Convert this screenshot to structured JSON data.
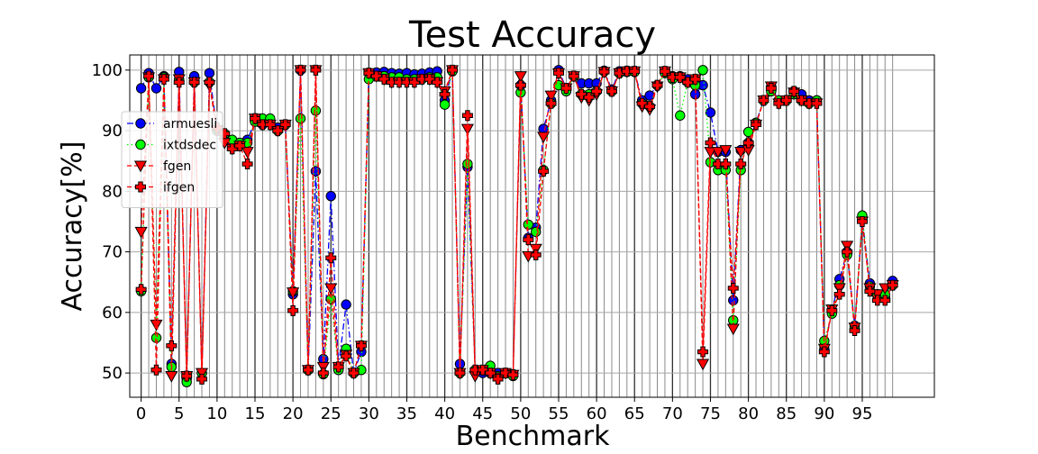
{
  "chart_data": {
    "type": "line",
    "title": "Test Accuracy",
    "xlabel": "Benchmark",
    "ylabel": "Accuracy[%]",
    "xlim": [
      -1.5,
      104.5
    ],
    "ylim": [
      46,
      102.5
    ],
    "xticks": [
      0,
      5,
      10,
      15,
      20,
      25,
      30,
      35,
      40,
      45,
      50,
      55,
      60,
      65,
      70,
      75,
      80,
      85,
      90,
      95
    ],
    "yticks": [
      50,
      60,
      70,
      80,
      90,
      100
    ],
    "grid": true,
    "legend_position": "upper-left",
    "x": [
      0,
      1,
      2,
      3,
      4,
      5,
      6,
      7,
      8,
      9,
      10,
      11,
      12,
      13,
      14,
      15,
      16,
      17,
      18,
      19,
      20,
      21,
      22,
      23,
      24,
      25,
      26,
      27,
      28,
      29,
      30,
      31,
      32,
      33,
      34,
      35,
      36,
      37,
      38,
      39,
      40,
      41,
      42,
      43,
      44,
      45,
      46,
      47,
      48,
      49,
      50,
      51,
      52,
      53,
      54,
      55,
      56,
      57,
      58,
      59,
      60,
      61,
      62,
      63,
      64,
      65,
      66,
      67,
      68,
      69,
      70,
      71,
      72,
      73,
      74,
      75,
      76,
      77,
      78,
      79,
      80,
      81,
      82,
      83,
      84,
      85,
      86,
      87,
      88,
      89,
      90,
      91,
      92,
      93,
      94,
      95,
      96,
      97,
      98,
      99
    ],
    "series": [
      {
        "name": "armuesli",
        "color": "#0000ff",
        "linestyle": "dashdot",
        "marker": "circle",
        "values": [
          97,
          99.5,
          97,
          99,
          51.5,
          99.7,
          49,
          99,
          50,
          99.5,
          90,
          89,
          88,
          88,
          88.5,
          91.5,
          91,
          91.5,
          90.5,
          91,
          63,
          100,
          50.5,
          83.3,
          52.3,
          79.2,
          51,
          61.3,
          50,
          53.5,
          99.5,
          99.6,
          99.7,
          99.5,
          99.4,
          99.5,
          99.3,
          99.4,
          99.6,
          99.8,
          95,
          100,
          51.5,
          84,
          50.5,
          50,
          50,
          50,
          50,
          49.8,
          97.5,
          72.3,
          74,
          90.3,
          95,
          100,
          97,
          99,
          97.8,
          97.8,
          97.8,
          99.9,
          96.8,
          99.8,
          99.9,
          99.8,
          95,
          95.8,
          97.5,
          99.7,
          99,
          99,
          98.5,
          96,
          97.5,
          93,
          86.5,
          86.5,
          62,
          86.8,
          88,
          91.3,
          95,
          97.3,
          95,
          95,
          96.5,
          96,
          95,
          95,
          54,
          60.3,
          65.5,
          70,
          57.8,
          75.5,
          64.8,
          62.8,
          62.5,
          65.2
        ]
      },
      {
        "name": "ixtdsdec",
        "color": "#00ff00",
        "linestyle": "dotted",
        "marker": "circle",
        "values": [
          63.5,
          98.8,
          55.8,
          98.8,
          51,
          98.5,
          48.5,
          98,
          50,
          98,
          90,
          89.5,
          88.5,
          88,
          88,
          91.5,
          92,
          92,
          90,
          91,
          63.5,
          92,
          50.5,
          93.3,
          49.8,
          62.2,
          50.5,
          54,
          50,
          50.5,
          98.5,
          99,
          99,
          98.8,
          98.8,
          98.5,
          98.5,
          98.5,
          98.8,
          98.8,
          94.3,
          99.8,
          50,
          84.5,
          50.5,
          50.5,
          51.2,
          49.5,
          50,
          49.5,
          96.3,
          74.5,
          73.3,
          83.5,
          94.5,
          97.5,
          96.5,
          99,
          96,
          96,
          96.5,
          99.8,
          96.5,
          99.5,
          99.7,
          99.7,
          94.5,
          94,
          97.5,
          99.5,
          98.5,
          92.5,
          98,
          97.5,
          100,
          84.8,
          83.5,
          83.5,
          58.7,
          83.5,
          89.8,
          91.3,
          95,
          96.5,
          95,
          95,
          96,
          95,
          94.5,
          95,
          55.3,
          59.8,
          64.5,
          69.5,
          57.5,
          76,
          64.3,
          63,
          63,
          64.5
        ]
      },
      {
        "name": "fgen",
        "color": "#ff0000",
        "linestyle": "dashed",
        "marker": "triangle-down",
        "values": [
          73.3,
          98.8,
          58,
          98.5,
          49.5,
          98.5,
          49.5,
          98,
          50,
          97.5,
          90,
          88,
          87,
          87.5,
          86.5,
          92,
          91,
          91,
          90,
          91,
          63.3,
          100,
          50.5,
          100,
          51,
          64,
          51,
          53,
          50,
          54.5,
          99.5,
          99,
          98.5,
          98,
          98,
          98,
          98,
          98.5,
          98.5,
          98,
          96.5,
          100,
          50,
          90.3,
          49.5,
          50.5,
          50,
          49.3,
          50,
          49.7,
          99,
          69.3,
          70.5,
          89,
          95.8,
          99.5,
          97,
          99,
          95.5,
          95,
          96,
          99.7,
          96.5,
          99.5,
          99.8,
          99.8,
          94,
          93.5,
          97.3,
          99.8,
          98.8,
          98.8,
          98,
          98.5,
          51.5,
          86.5,
          86.5,
          86.8,
          57.3,
          86.5,
          86.8,
          91,
          95,
          97.3,
          94.5,
          95,
          96.3,
          95,
          94.5,
          94.5,
          54,
          60.5,
          64,
          71,
          57.5,
          75,
          64,
          63,
          64,
          64.5
        ]
      },
      {
        "name": "ifgen",
        "color": "#ff0000",
        "linestyle": "dashed",
        "marker": "plus",
        "values": [
          63.8,
          99,
          50.5,
          98.5,
          54.5,
          98,
          49.5,
          98,
          49,
          98,
          90.5,
          89.5,
          87,
          87.5,
          84.5,
          92,
          91,
          91,
          90,
          91,
          60.3,
          100,
          50.5,
          100,
          50,
          69,
          51,
          52.8,
          50,
          54.5,
          99.5,
          99,
          98.5,
          98,
          98,
          98,
          98,
          98.5,
          98.5,
          98,
          96,
          100,
          50,
          92.5,
          50.5,
          50.5,
          50,
          49,
          50,
          49.7,
          97.5,
          72,
          69.5,
          83.3,
          94.5,
          99.5,
          97,
          99,
          96,
          95.5,
          96.5,
          99.7,
          96.5,
          99.5,
          99.8,
          99.8,
          94.5,
          94,
          97.5,
          99.8,
          98.8,
          98.8,
          98,
          98.5,
          53.5,
          88,
          84.5,
          84.5,
          64,
          84.5,
          88,
          91,
          95,
          97,
          94.5,
          95,
          96.5,
          95,
          94.5,
          94.5,
          53.5,
          60.3,
          63,
          70,
          57,
          75,
          63.5,
          62,
          62,
          64.5
        ]
      }
    ]
  }
}
